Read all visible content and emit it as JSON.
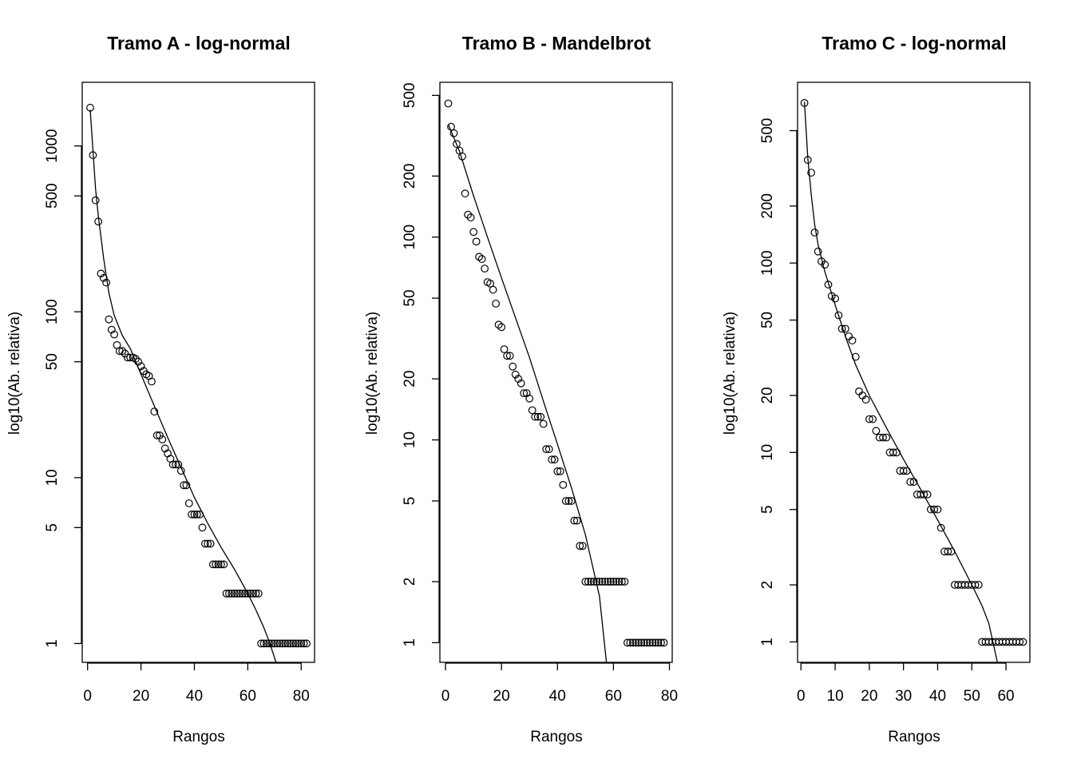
{
  "chart_data": [
    {
      "type": "scatter",
      "title": "Tramo A - log-normal",
      "xlabel": "Rangos",
      "ylabel": "log10(Ab. relativa)",
      "log_y": true,
      "xlim": [
        -2,
        85
      ],
      "ylim": [
        0.77,
        2420
      ],
      "xticks": [
        0,
        20,
        40,
        60,
        80
      ],
      "yticks": [
        1,
        5,
        10,
        50,
        100,
        500,
        1000
      ],
      "grid": false,
      "legend": "none",
      "series": [
        {
          "kind": "points",
          "values": [
            1700,
            880,
            470,
            350,
            170,
            160,
            150,
            90,
            78,
            73,
            63,
            58,
            58,
            56,
            53,
            53,
            53,
            52,
            50,
            47,
            44,
            42,
            41,
            38,
            25,
            18,
            18,
            17,
            15,
            14,
            13,
            12,
            12,
            12,
            11,
            9,
            9,
            7,
            6,
            6,
            6,
            6,
            5,
            4,
            4,
            4,
            3,
            3,
            3,
            3,
            3,
            2,
            2,
            2,
            2,
            2,
            2,
            2,
            2,
            2,
            2,
            2,
            2,
            2,
            1,
            1,
            1,
            1,
            1,
            1,
            1,
            1,
            1,
            1,
            1,
            1,
            1,
            1,
            1,
            1,
            1,
            1
          ]
        },
        {
          "kind": "line",
          "x": [
            1,
            2,
            3,
            4,
            6,
            8,
            10,
            13,
            16,
            20,
            25,
            30,
            35,
            40,
            45,
            50,
            55,
            60,
            63,
            66,
            68,
            70.6
          ],
          "y": [
            1650,
            950,
            550,
            380,
            210,
            130,
            95,
            72,
            60,
            42,
            27,
            17.5,
            11.5,
            7.6,
            5.3,
            3.8,
            2.8,
            2.0,
            1.6,
            1.25,
            1.03,
            0.77
          ]
        }
      ]
    },
    {
      "type": "scatter",
      "title": "Tramo B - Mandelbrot",
      "xlabel": "Rangos",
      "ylabel": "log10(Ab. relativa)",
      "log_y": true,
      "xlim": [
        -2,
        81
      ],
      "ylim": [
        0.8,
        580
      ],
      "xticks": [
        0,
        20,
        40,
        60,
        80
      ],
      "yticks": [
        1,
        2,
        5,
        10,
        20,
        50,
        100,
        200,
        500
      ],
      "grid": false,
      "legend": "none",
      "series": [
        {
          "kind": "points",
          "values": [
            456,
            350,
            325,
            288,
            267,
            250,
            164,
            129,
            125,
            106,
            95,
            80,
            78,
            70,
            60,
            59,
            55,
            47,
            37,
            36,
            28,
            26,
            26,
            23,
            21,
            20,
            19,
            17,
            17,
            16,
            14,
            13,
            13,
            13,
            12,
            9,
            9,
            8,
            8,
            7,
            7,
            6,
            5,
            5,
            5,
            4,
            4,
            3,
            3,
            2,
            2,
            2,
            2,
            2,
            2,
            2,
            2,
            2,
            2,
            2,
            2,
            2,
            2,
            2,
            1,
            1,
            1,
            1,
            1,
            1,
            1,
            1,
            1,
            1,
            1,
            1,
            1,
            1
          ]
        },
        {
          "kind": "line",
          "x": [
            1,
            5,
            10,
            15,
            20,
            25,
            30,
            35,
            40,
            45,
            50,
            55,
            57.5
          ],
          "y": [
            360,
            265,
            160,
            100,
            63,
            40,
            25.5,
            15.5,
            9.5,
            5.8,
            3.4,
            1.7,
            0.8
          ]
        }
      ]
    },
    {
      "type": "scatter",
      "title": "Tramo C - log-normal",
      "xlabel": "Rangos",
      "ylabel": "log10(Ab. relativa)",
      "log_y": true,
      "xlim": [
        -1,
        67
      ],
      "ylim": [
        0.78,
        900
      ],
      "xticks": [
        0,
        10,
        20,
        30,
        40,
        50,
        60
      ],
      "yticks": [
        1,
        2,
        5,
        10,
        20,
        50,
        100,
        200,
        500
      ],
      "grid": false,
      "legend": "none",
      "series": [
        {
          "kind": "points",
          "values": [
            700,
            350,
            300,
            145,
            115,
            102,
            98,
            77,
            67,
            65,
            53,
            45,
            45,
            41,
            39,
            32,
            21,
            20,
            19,
            15,
            15,
            13,
            12,
            12,
            12,
            10,
            10,
            10,
            8,
            8,
            8,
            7,
            7,
            6,
            6,
            6,
            6,
            5,
            5,
            5,
            4,
            3,
            3,
            3,
            2,
            2,
            2,
            2,
            2,
            2,
            2,
            2,
            1,
            1,
            1,
            1,
            1,
            1,
            1,
            1,
            1,
            1,
            1,
            1,
            1
          ]
        },
        {
          "kind": "line",
          "x": [
            1,
            2,
            3,
            4,
            5,
            7,
            10,
            13,
            16,
            20,
            25,
            30,
            35,
            40,
            45,
            50,
            53,
            55,
            57.5
          ],
          "y": [
            710,
            360,
            230,
            160,
            125,
            90,
            60,
            41,
            29,
            20,
            13.5,
            9.2,
            6.4,
            4.4,
            3.0,
            2.0,
            1.55,
            1.25,
            0.78
          ]
        }
      ]
    }
  ]
}
